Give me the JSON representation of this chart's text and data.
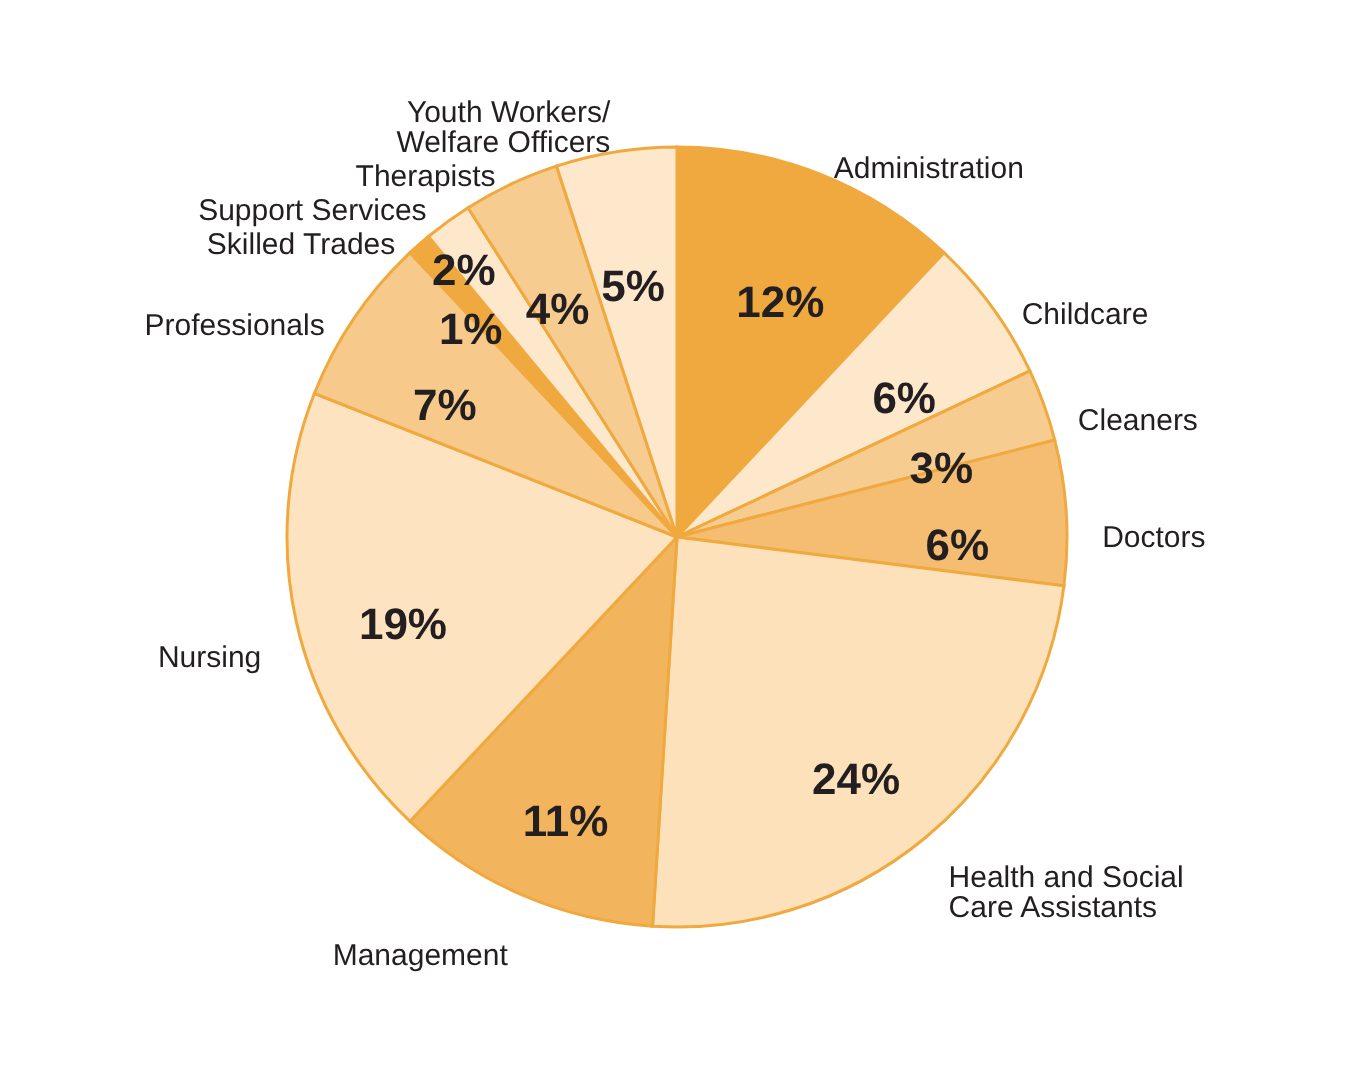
{
  "chart_data": {
    "type": "pie",
    "categories": [
      "Administration",
      "Childcare",
      "Cleaners",
      "Doctors",
      "Health and Social Care Assistants",
      "Management",
      "Nursing",
      "Professionals",
      "Skilled Trades",
      "Support Services",
      "Therapists",
      "Youth Workers/ Welfare Officers"
    ],
    "values": [
      12,
      6,
      3,
      6,
      24,
      11,
      19,
      7,
      1,
      2,
      4,
      5
    ],
    "value_labels": [
      "12%",
      "6%",
      "3%",
      "6%",
      "24%",
      "11%",
      "19%",
      "7%",
      "1%",
      "2%",
      "4%",
      "5%"
    ],
    "colors": [
      "#f0a93f",
      "#fde8cc",
      "#f7cc91",
      "#f4bd72",
      "#fde1bb",
      "#f2b55e",
      "#fde3c0",
      "#f7c98b",
      "#f0a93f",
      "#fde8cc",
      "#f7cc91",
      "#fde8cc"
    ]
  }
}
